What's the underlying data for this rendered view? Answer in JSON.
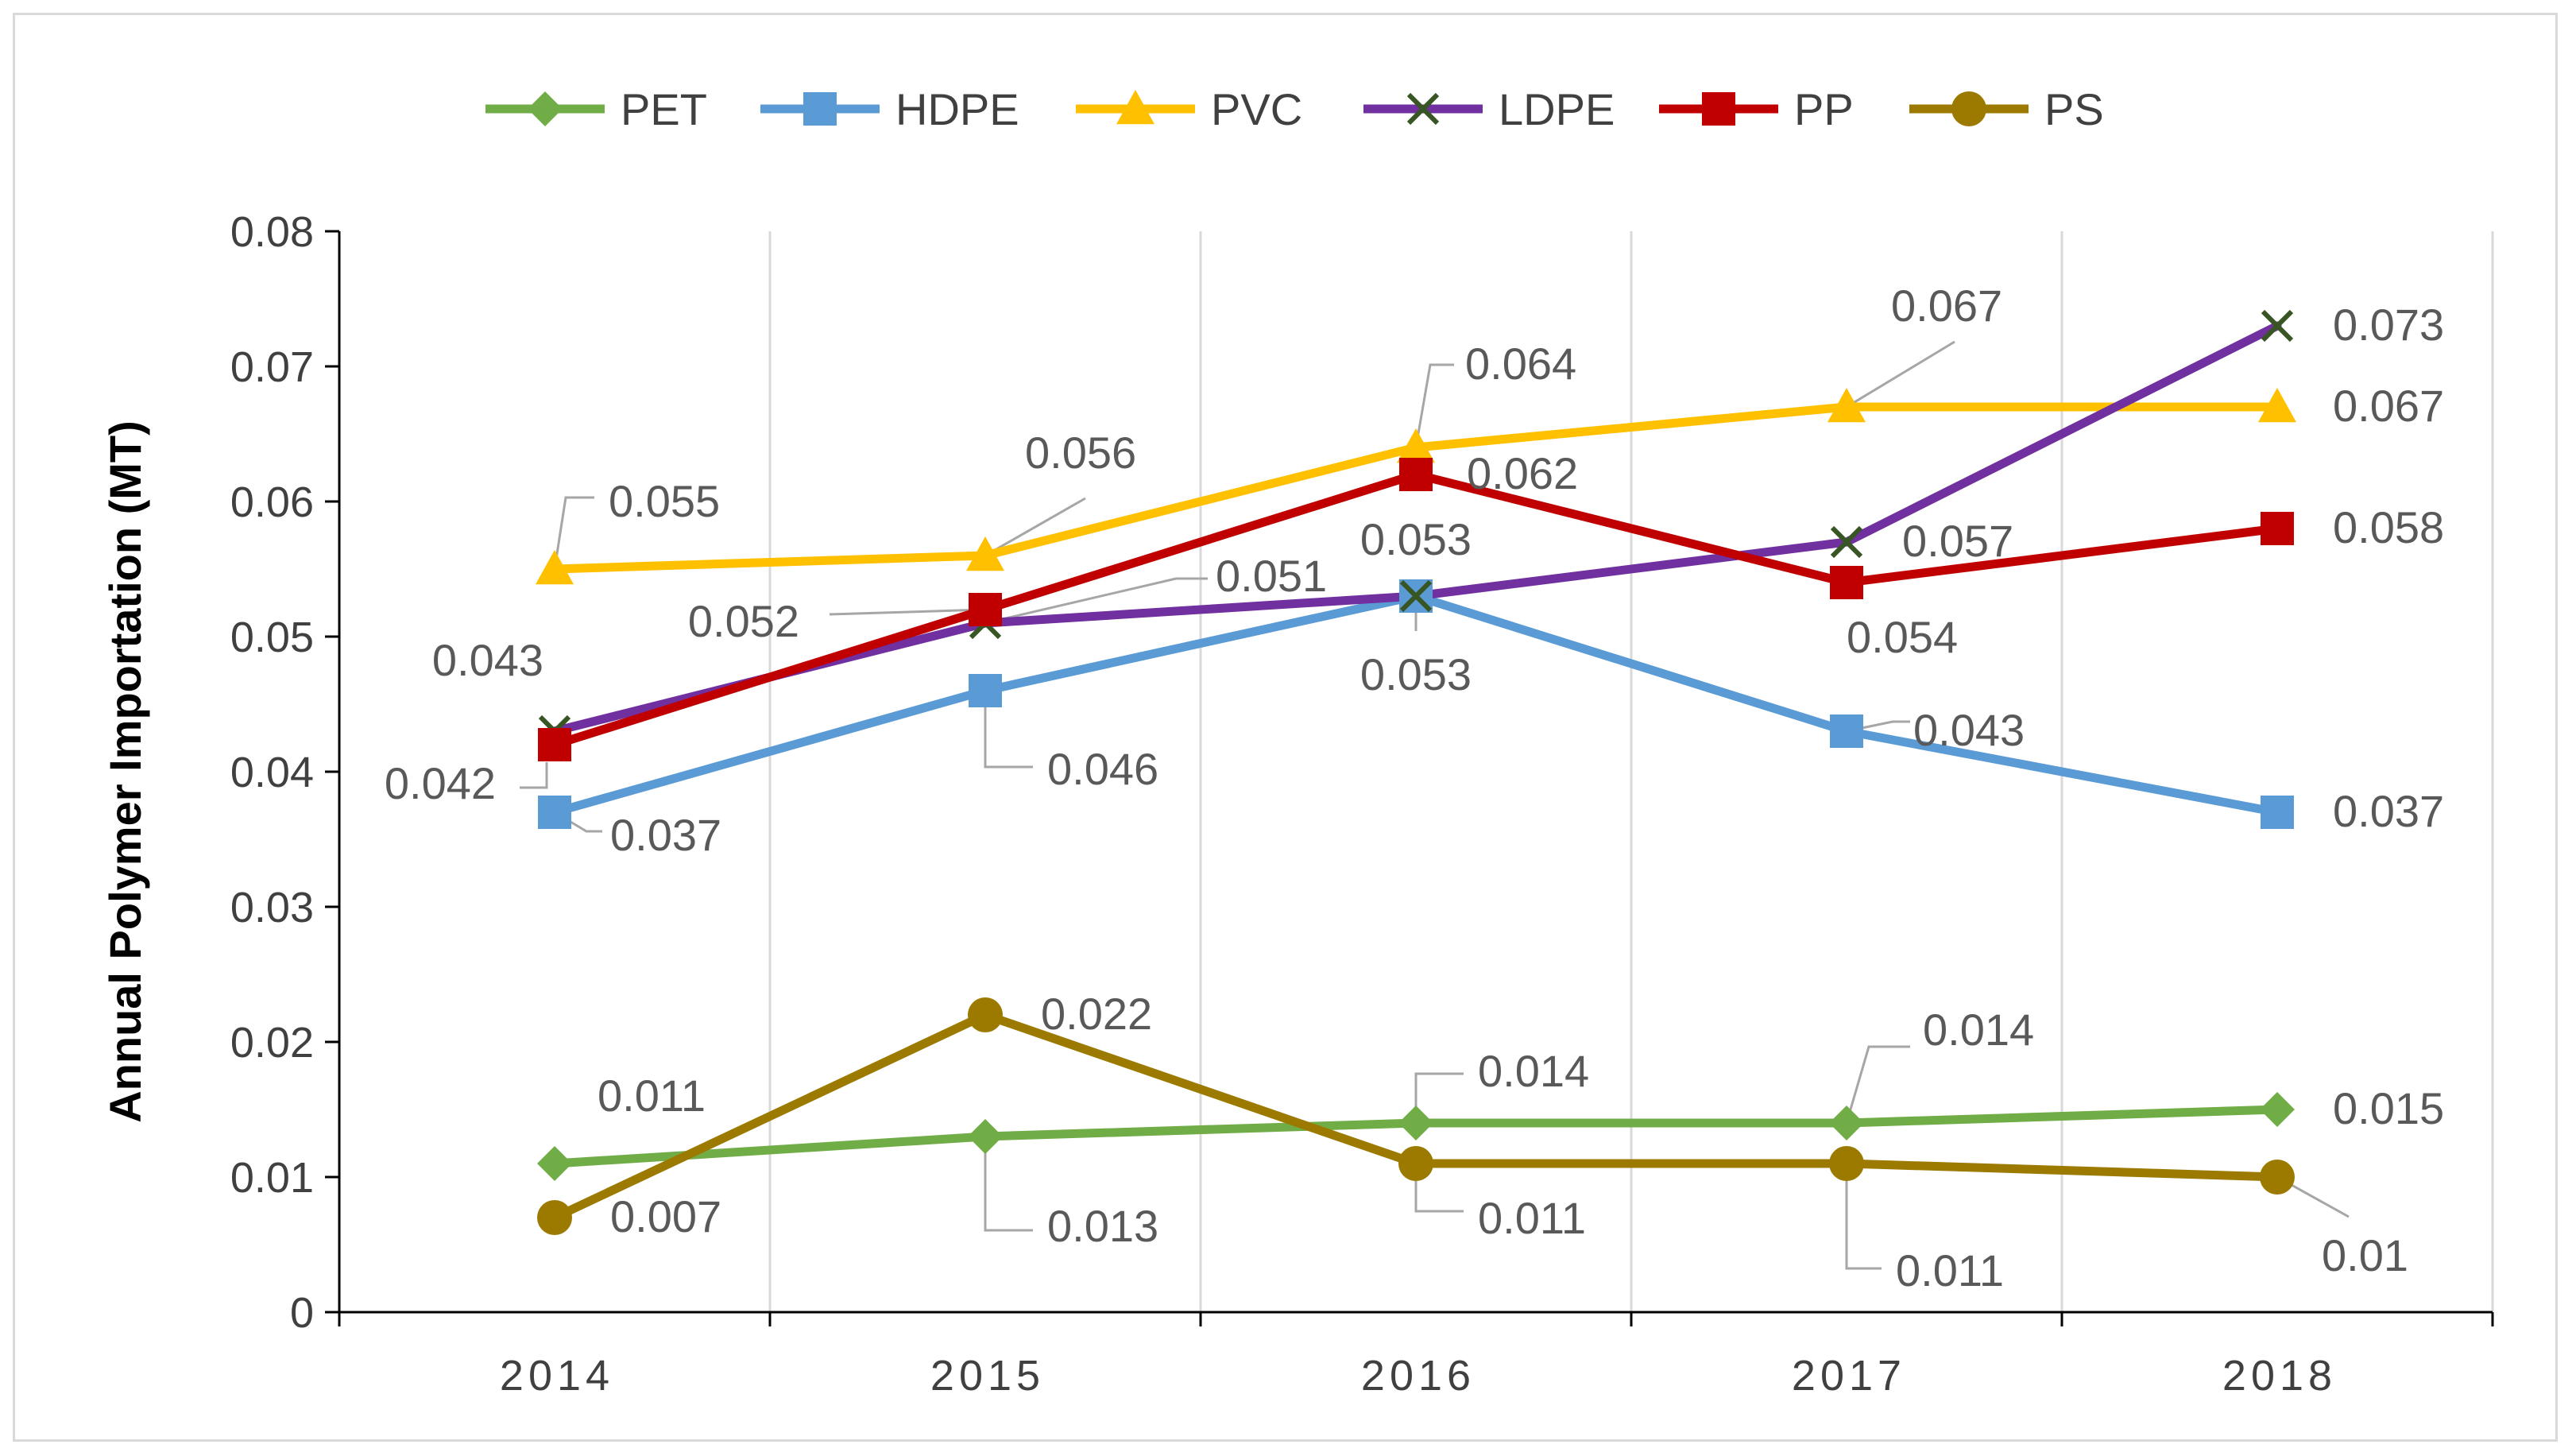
{
  "chart_data": {
    "type": "line",
    "title": "",
    "xlabel": "",
    "ylabel": "Annual Polymer Importation (MT)",
    "categories": [
      "2014",
      "2015",
      "2016",
      "2017",
      "2018"
    ],
    "ylim": [
      0,
      0.08
    ],
    "yticks": [
      "0",
      "0.01",
      "0.02",
      "0.03",
      "0.04",
      "0.05",
      "0.06",
      "0.07",
      "0.08"
    ],
    "grid": "vertical",
    "legend_position": "top",
    "series": [
      {
        "name": "PET",
        "color": "#70ad47",
        "marker": "diamond",
        "values": [
          0.011,
          0.013,
          0.014,
          0.014,
          0.015
        ],
        "labels": [
          "0.011",
          "0.013",
          "0.014",
          "0.014",
          "0.015"
        ]
      },
      {
        "name": "HDPE",
        "color": "#5b9bd5",
        "marker": "square",
        "values": [
          0.037,
          0.046,
          0.053,
          0.043,
          0.037
        ],
        "labels": [
          "0.037",
          "0.046",
          "0.053",
          "0.043",
          "0.037"
        ]
      },
      {
        "name": "PVC",
        "color": "#ffc000",
        "marker": "triangle",
        "values": [
          0.055,
          0.056,
          0.064,
          0.067,
          0.067
        ],
        "labels": [
          "0.055",
          "0.056",
          "0.064",
          "0.067",
          "0.067"
        ]
      },
      {
        "name": "LDPE",
        "color": "#7030a0",
        "marker": "x",
        "marker_color": "#375623",
        "values": [
          0.043,
          0.051,
          0.053,
          0.057,
          0.073
        ],
        "labels": [
          "0.043",
          "0.051",
          "0.053",
          "0.057",
          "0.073"
        ]
      },
      {
        "name": "PP",
        "color": "#c00000",
        "marker": "square",
        "values": [
          0.042,
          0.052,
          0.062,
          0.054,
          0.058
        ],
        "labels": [
          "0.042",
          "0.052",
          "0.062",
          "0.054",
          "0.058"
        ]
      },
      {
        "name": "PS",
        "color": "#9c7a00",
        "marker": "circle",
        "values": [
          0.007,
          0.022,
          0.011,
          0.011,
          0.01
        ],
        "labels": [
          "0.007",
          "0.022",
          "0.011",
          "0.011",
          "0.01"
        ]
      }
    ]
  }
}
